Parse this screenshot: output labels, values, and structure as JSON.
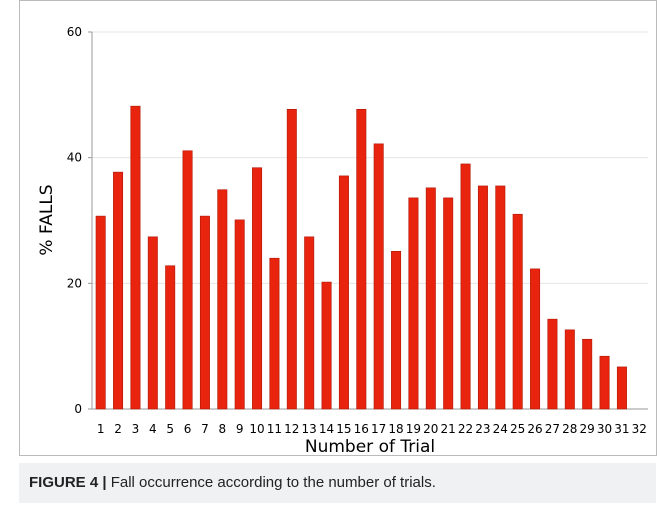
{
  "chart_data": {
    "type": "bar",
    "ylabel": "% FALLS",
    "xlabel": "Number of Trial",
    "categories": [
      "1",
      "2",
      "3",
      "4",
      "5",
      "6",
      "7",
      "8",
      "9",
      "10",
      "11",
      "12",
      "13",
      "14",
      "15",
      "16",
      "17",
      "18",
      "19",
      "20",
      "21",
      "22",
      "23",
      "24",
      "25",
      "26",
      "27",
      "28",
      "29",
      "30",
      "31",
      "32"
    ],
    "values": [
      30.7,
      37.7,
      48.2,
      27.4,
      22.8,
      41.1,
      30.7,
      34.9,
      30.1,
      38.4,
      24.0,
      47.7,
      27.4,
      20.2,
      37.1,
      47.7,
      42.2,
      25.1,
      33.6,
      35.2,
      33.6,
      39.0,
      35.5,
      35.5,
      31.0,
      22.3,
      14.3,
      12.6,
      11.1,
      8.4,
      6.7,
      null
    ],
    "color": "#e8230e",
    "ylim": [
      0,
      60
    ],
    "yticks": [
      0,
      20,
      40,
      60
    ],
    "grid": true
  },
  "caption": {
    "label": "FIGURE 4 |",
    "text": "Fall occurrence according to the number of trials."
  }
}
